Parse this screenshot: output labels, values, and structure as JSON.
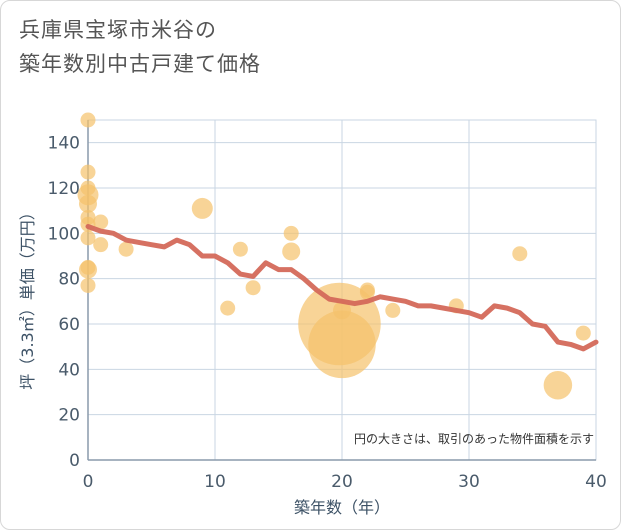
{
  "title": {
    "line1": "兵庫県宝塚市米谷の",
    "line2": "築年数別中古戸建て価格"
  },
  "note": "円の大きさは、取引のあった物件面積を示す",
  "colors": {
    "bubble": "#f5c26b",
    "trend": "#d4695a",
    "grid": "#c9d6e3",
    "axis": "#8a9aab"
  },
  "chart_data": {
    "type": "scatter",
    "xlabel": "築年数（年）",
    "ylabel": "坪（3.3㎡）単価（万円）",
    "xlim": [
      0,
      40
    ],
    "ylim": [
      0,
      150
    ],
    "xticks": [
      0,
      10,
      20,
      30,
      40
    ],
    "yticks": [
      0,
      20,
      40,
      60,
      80,
      100,
      120,
      140
    ],
    "grid": true,
    "bubbles": [
      {
        "x": 0,
        "y": 150,
        "size": 1
      },
      {
        "x": 0,
        "y": 127,
        "size": 1
      },
      {
        "x": 0,
        "y": 120,
        "size": 1
      },
      {
        "x": 0,
        "y": 117,
        "size": 1.4
      },
      {
        "x": 0,
        "y": 113,
        "size": 1.2
      },
      {
        "x": 0,
        "y": 107,
        "size": 1
      },
      {
        "x": 0,
        "y": 104,
        "size": 1
      },
      {
        "x": 0,
        "y": 98,
        "size": 1
      },
      {
        "x": 0,
        "y": 85,
        "size": 1
      },
      {
        "x": 0,
        "y": 84,
        "size": 1.2
      },
      {
        "x": 0,
        "y": 77,
        "size": 1
      },
      {
        "x": 1,
        "y": 105,
        "size": 1
      },
      {
        "x": 1,
        "y": 95,
        "size": 1
      },
      {
        "x": 3,
        "y": 93,
        "size": 1
      },
      {
        "x": 9,
        "y": 111,
        "size": 1.4
      },
      {
        "x": 11,
        "y": 67,
        "size": 1
      },
      {
        "x": 12,
        "y": 93,
        "size": 1
      },
      {
        "x": 13,
        "y": 76,
        "size": 1
      },
      {
        "x": 16,
        "y": 100,
        "size": 1
      },
      {
        "x": 16,
        "y": 92,
        "size": 1.2
      },
      {
        "x": 19.8,
        "y": 60,
        "size": 5.5
      },
      {
        "x": 20,
        "y": 66,
        "size": 1.2
      },
      {
        "x": 20,
        "y": 51,
        "size": 4.5
      },
      {
        "x": 22,
        "y": 75,
        "size": 1
      },
      {
        "x": 22,
        "y": 74,
        "size": 1
      },
      {
        "x": 24,
        "y": 66,
        "size": 1
      },
      {
        "x": 29,
        "y": 68,
        "size": 1
      },
      {
        "x": 34,
        "y": 91,
        "size": 1
      },
      {
        "x": 37,
        "y": 33,
        "size": 1.9
      },
      {
        "x": 39,
        "y": 56,
        "size": 1
      }
    ],
    "trend": {
      "x": [
        0,
        1,
        2,
        3,
        4,
        5,
        6,
        7,
        8,
        9,
        10,
        11,
        12,
        13,
        14,
        15,
        16,
        17,
        18,
        19,
        20,
        21,
        22,
        23,
        24,
        25,
        26,
        27,
        28,
        29,
        30,
        31,
        32,
        33,
        34,
        35,
        36,
        37,
        38,
        39,
        40
      ],
      "y": [
        103,
        101,
        100,
        97,
        96,
        95,
        94,
        97,
        95,
        90,
        90,
        87,
        82,
        81,
        87,
        84,
        84,
        80,
        75,
        71,
        70,
        69,
        70,
        72,
        71,
        70,
        68,
        68,
        67,
        66,
        65,
        63,
        68,
        67,
        65,
        60,
        59,
        52,
        51,
        49,
        52
      ]
    }
  }
}
